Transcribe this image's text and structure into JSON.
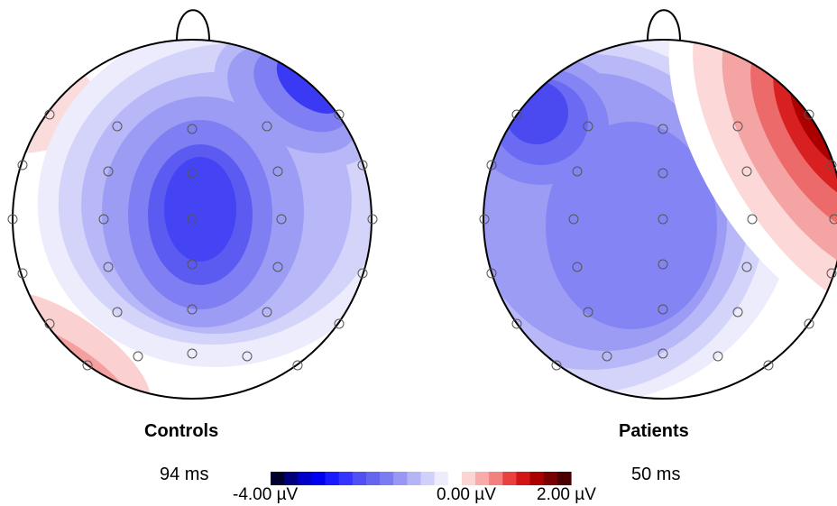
{
  "colorbar": {
    "min_label": "-4.00 µV",
    "mid_label": "0.00 µV",
    "max_label": "2.00 µV",
    "min_value": -4.0,
    "max_value": 2.0,
    "colors": [
      "#00002e",
      "#00007a",
      "#0000c8",
      "#0000f0",
      "#1a1aff",
      "#3535ff",
      "#5050f5",
      "#6565f0",
      "#7c7cf2",
      "#9898f4",
      "#b4b4f7",
      "#d0d0fa",
      "#ececfd",
      "#ffffff",
      "#fcd4d4",
      "#f9aaaa",
      "#f47f7f",
      "#ea4040",
      "#d21616",
      "#aa0000",
      "#780000",
      "#4a0000"
    ]
  },
  "maps": [
    {
      "title": "Controls",
      "time": "94 ms"
    },
    {
      "title": "Patients",
      "time": "50 ms"
    }
  ]
}
